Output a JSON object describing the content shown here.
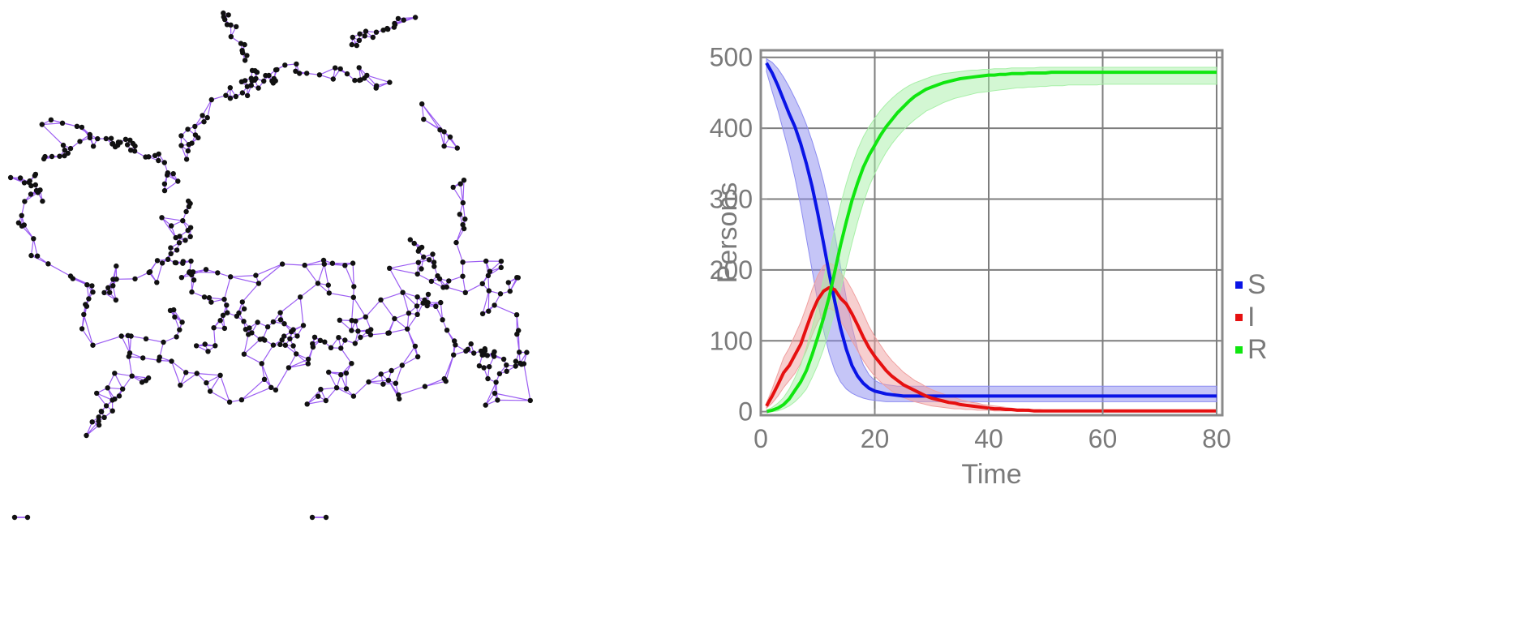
{
  "network": {
    "edge_color": "#8a3ff0",
    "node_color": "#111111"
  },
  "chart_data": {
    "type": "line",
    "title": "",
    "xlabel": "Time",
    "ylabel": "Persons",
    "xlim": [
      0,
      81
    ],
    "ylim": [
      -5,
      510
    ],
    "xticks": [
      0,
      20,
      40,
      60,
      80
    ],
    "yticks": [
      0,
      100,
      200,
      300,
      400,
      500
    ],
    "grid": true,
    "legend": "right",
    "x": [
      1,
      2,
      3,
      4,
      5,
      6,
      7,
      8,
      9,
      10,
      11,
      12,
      13,
      14,
      15,
      16,
      17,
      18,
      19,
      20,
      21,
      22,
      23,
      24,
      25,
      26,
      27,
      28,
      29,
      30,
      31,
      32,
      33,
      34,
      35,
      36,
      37,
      38,
      39,
      40,
      41,
      42,
      43,
      44,
      45,
      46,
      47,
      48,
      49,
      50,
      51,
      52,
      53,
      54,
      55,
      56,
      57,
      58,
      59,
      60,
      61,
      62,
      63,
      64,
      65,
      66,
      67,
      68,
      69,
      70,
      71,
      72,
      73,
      74,
      75,
      76,
      77,
      78,
      79,
      80
    ],
    "series": [
      {
        "name": "S",
        "color": "#0a14e6",
        "band_color": "#8c8cf0",
        "values": [
          492,
          478,
          460,
          440,
          420,
          402,
          378,
          350,
          318,
          280,
          238,
          195,
          155,
          118,
          88,
          65,
          50,
          40,
          33,
          29,
          27,
          25,
          24,
          23,
          22,
          22,
          22,
          22,
          22,
          22,
          22,
          22,
          22,
          22,
          22,
          22,
          22,
          22,
          22,
          22,
          22,
          22,
          22,
          22,
          22,
          22,
          22,
          22,
          22,
          22,
          22,
          22,
          22,
          22,
          22,
          22,
          22,
          22,
          22,
          22,
          22,
          22,
          22,
          22,
          22,
          22,
          22,
          22,
          22,
          22,
          22,
          22,
          22,
          22,
          22,
          22,
          22,
          22,
          22,
          22
        ],
        "lower": [
          480,
          452,
          425,
          395,
          365,
          330,
          290,
          245,
          200,
          155,
          115,
          82,
          58,
          42,
          32,
          26,
          22,
          19,
          17,
          16,
          15,
          14,
          14,
          14,
          14,
          14,
          14,
          14,
          14,
          14,
          14,
          14,
          14,
          14,
          14,
          14,
          14,
          14,
          14,
          14,
          14,
          14,
          14,
          14,
          14,
          14,
          14,
          14,
          14,
          14,
          14,
          14,
          14,
          14,
          14,
          14,
          14,
          14,
          14,
          14,
          14,
          14,
          14,
          14,
          14,
          14,
          14,
          14,
          14,
          14,
          14,
          14,
          14,
          14,
          14,
          14,
          14,
          14,
          14,
          14
        ],
        "upper": [
          498,
          493,
          484,
          472,
          458,
          442,
          425,
          405,
          382,
          356,
          325,
          290,
          250,
          205,
          160,
          120,
          88,
          66,
          52,
          44,
          40,
          38,
          37,
          36,
          36,
          36,
          36,
          36,
          36,
          36,
          36,
          36,
          36,
          36,
          36,
          36,
          36,
          36,
          36,
          36,
          36,
          36,
          36,
          36,
          36,
          36,
          36,
          36,
          36,
          36,
          36,
          36,
          36,
          36,
          36,
          36,
          36,
          36,
          36,
          36,
          36,
          36,
          36,
          36,
          36,
          36,
          36,
          36,
          36,
          36,
          36,
          36,
          36,
          36,
          36,
          36,
          36,
          36,
          36,
          36
        ]
      },
      {
        "name": "I",
        "color": "#e61010",
        "band_color": "#f0a0a0",
        "values": [
          8,
          22,
          38,
          55,
          65,
          80,
          95,
          118,
          140,
          158,
          170,
          175,
          172,
          160,
          152,
          138,
          122,
          105,
          90,
          78,
          68,
          58,
          50,
          44,
          38,
          34,
          30,
          26,
          22,
          19,
          17,
          15,
          13,
          12,
          10,
          9,
          8,
          7,
          6,
          5,
          4,
          4,
          3,
          3,
          2,
          2,
          2,
          1,
          1,
          1,
          1,
          1,
          1,
          1,
          1,
          1,
          1,
          1,
          1,
          1,
          1,
          1,
          1,
          1,
          1,
          1,
          1,
          1,
          1,
          1,
          1,
          1,
          1,
          1,
          1,
          1,
          1,
          1,
          1,
          1
        ],
        "lower": [
          5,
          12,
          22,
          34,
          44,
          54,
          68,
          86,
          108,
          126,
          140,
          146,
          142,
          128,
          115,
          100,
          86,
          72,
          60,
          50,
          42,
          35,
          29,
          24,
          20,
          17,
          14,
          12,
          10,
          8,
          7,
          6,
          5,
          4,
          4,
          3,
          3,
          2,
          2,
          2,
          1,
          1,
          1,
          1,
          1,
          1,
          0,
          0,
          0,
          0,
          0,
          0,
          0,
          0,
          0,
          0,
          0,
          0,
          0,
          0,
          0,
          0,
          0,
          0,
          0,
          0,
          0,
          0,
          0,
          0,
          0,
          0,
          0,
          0,
          0,
          0,
          0,
          0,
          0,
          0
        ],
        "upper": [
          12,
          32,
          54,
          76,
          90,
          108,
          126,
          148,
          172,
          192,
          206,
          210,
          206,
          196,
          186,
          172,
          156,
          138,
          120,
          106,
          94,
          82,
          72,
          64,
          56,
          50,
          44,
          40,
          35,
          31,
          28,
          25,
          22,
          20,
          17,
          15,
          13,
          12,
          10,
          9,
          8,
          7,
          6,
          5,
          4,
          4,
          3,
          3,
          3,
          2,
          2,
          2,
          2,
          2,
          2,
          2,
          2,
          2,
          2,
          2,
          2,
          2,
          2,
          2,
          2,
          2,
          2,
          2,
          2,
          2,
          2,
          2,
          2,
          2,
          2,
          2,
          2,
          2,
          2,
          2
        ]
      },
      {
        "name": "R",
        "color": "#10e610",
        "band_color": "#a8f0a8",
        "values": [
          0,
          2,
          5,
          10,
          18,
          30,
          42,
          58,
          80,
          105,
          132,
          162,
          198,
          235,
          268,
          298,
          323,
          345,
          362,
          376,
          390,
          402,
          412,
          422,
          430,
          438,
          445,
          450,
          455,
          458,
          461,
          464,
          466,
          468,
          470,
          471,
          472,
          473,
          474,
          475,
          475,
          476,
          476,
          477,
          477,
          477,
          478,
          478,
          478,
          478,
          479,
          479,
          479,
          479,
          479,
          479,
          479,
          479,
          479,
          479,
          479,
          479,
          479,
          479,
          479,
          479,
          479,
          479,
          479,
          479,
          479,
          479,
          479,
          479,
          479,
          479,
          479,
          479,
          479,
          479
        ],
        "lower": [
          0,
          0,
          1,
          4,
          8,
          14,
          22,
          32,
          48,
          66,
          88,
          114,
          142,
          172,
          205,
          238,
          268,
          295,
          318,
          336,
          352,
          366,
          378,
          388,
          397,
          405,
          412,
          418,
          424,
          428,
          432,
          436,
          439,
          442,
          444,
          446,
          448,
          450,
          451,
          452,
          453,
          454,
          455,
          456,
          457,
          457,
          458,
          458,
          459,
          459,
          460,
          460,
          460,
          461,
          461,
          461,
          461,
          461,
          461,
          462,
          462,
          462,
          462,
          462,
          462,
          462,
          462,
          462,
          462,
          462,
          462,
          462,
          462,
          462,
          462,
          462,
          462,
          462,
          462,
          462
        ],
        "upper": [
          2,
          6,
          12,
          20,
          32,
          48,
          66,
          90,
          118,
          150,
          186,
          222,
          258,
          292,
          322,
          348,
          370,
          388,
          402,
          414,
          425,
          434,
          442,
          449,
          455,
          460,
          464,
          467,
          470,
          473,
          475,
          477,
          478,
          479,
          480,
          481,
          482,
          482,
          483,
          483,
          484,
          484,
          484,
          485,
          485,
          485,
          485,
          485,
          486,
          486,
          486,
          486,
          486,
          486,
          486,
          486,
          486,
          486,
          486,
          486,
          486,
          486,
          486,
          486,
          486,
          486,
          486,
          486,
          486,
          486,
          486,
          486,
          486,
          486,
          486,
          486,
          486,
          486,
          486,
          486
        ]
      }
    ]
  }
}
